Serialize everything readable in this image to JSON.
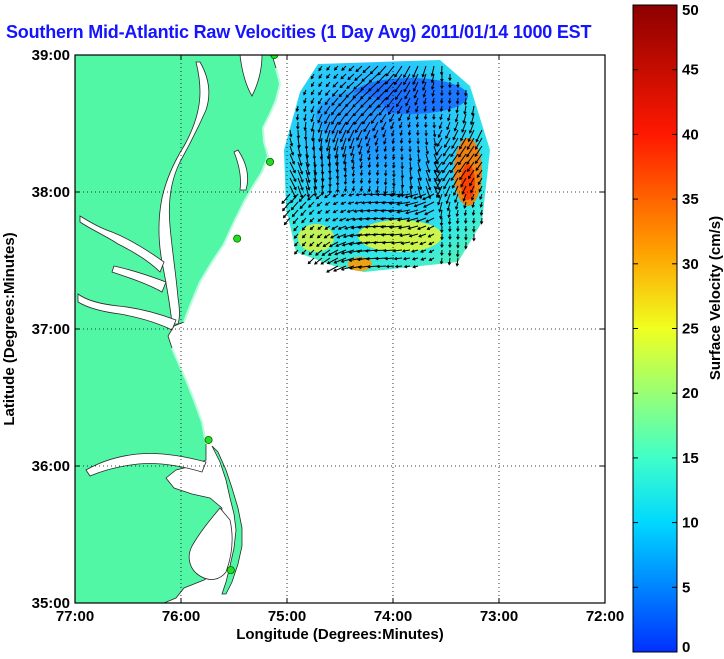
{
  "map": {
    "title": "Southern Mid-Atlantic Raw Velocities (1 Day Avg) 2011/01/14 1000 EST",
    "xlabel": "Longitude (Degrees:Minutes)",
    "ylabel": "Latitude (Degrees:Minutes)",
    "xlim": [
      -77,
      -72
    ],
    "ylim": [
      35,
      39
    ],
    "x_ticks": [
      {
        "value": -77,
        "label": "77:00"
      },
      {
        "value": -76,
        "label": "76:00"
      },
      {
        "value": -75,
        "label": "75:00"
      },
      {
        "value": -74,
        "label": "74:00"
      },
      {
        "value": -73,
        "label": "73:00"
      },
      {
        "value": -72,
        "label": "72:00"
      }
    ],
    "y_ticks": [
      {
        "value": 39,
        "label": "39:00"
      },
      {
        "value": 38,
        "label": "38:00"
      },
      {
        "value": 37,
        "label": "37:00"
      },
      {
        "value": 36,
        "label": "36:00"
      },
      {
        "value": 35,
        "label": "35:00"
      }
    ],
    "grid": "dotted",
    "land_color": "#52f7a6",
    "isobath_color": "#8c8c8c",
    "station_color": "#22dd22",
    "stations": [
      {
        "lon": -75.12,
        "lat": 39.0
      },
      {
        "lon": -75.16,
        "lat": 38.22
      },
      {
        "lon": -75.47,
        "lat": 37.66
      },
      {
        "lon": -75.74,
        "lat": 36.19
      },
      {
        "lon": -75.53,
        "lat": 35.24
      }
    ]
  },
  "colorbar": {
    "label": "Surface Velocity (cm/s)",
    "range": [
      0,
      50
    ],
    "ticks": [
      "0",
      "5",
      "10",
      "15",
      "20",
      "25",
      "30",
      "35",
      "40",
      "45",
      "50"
    ]
  }
}
